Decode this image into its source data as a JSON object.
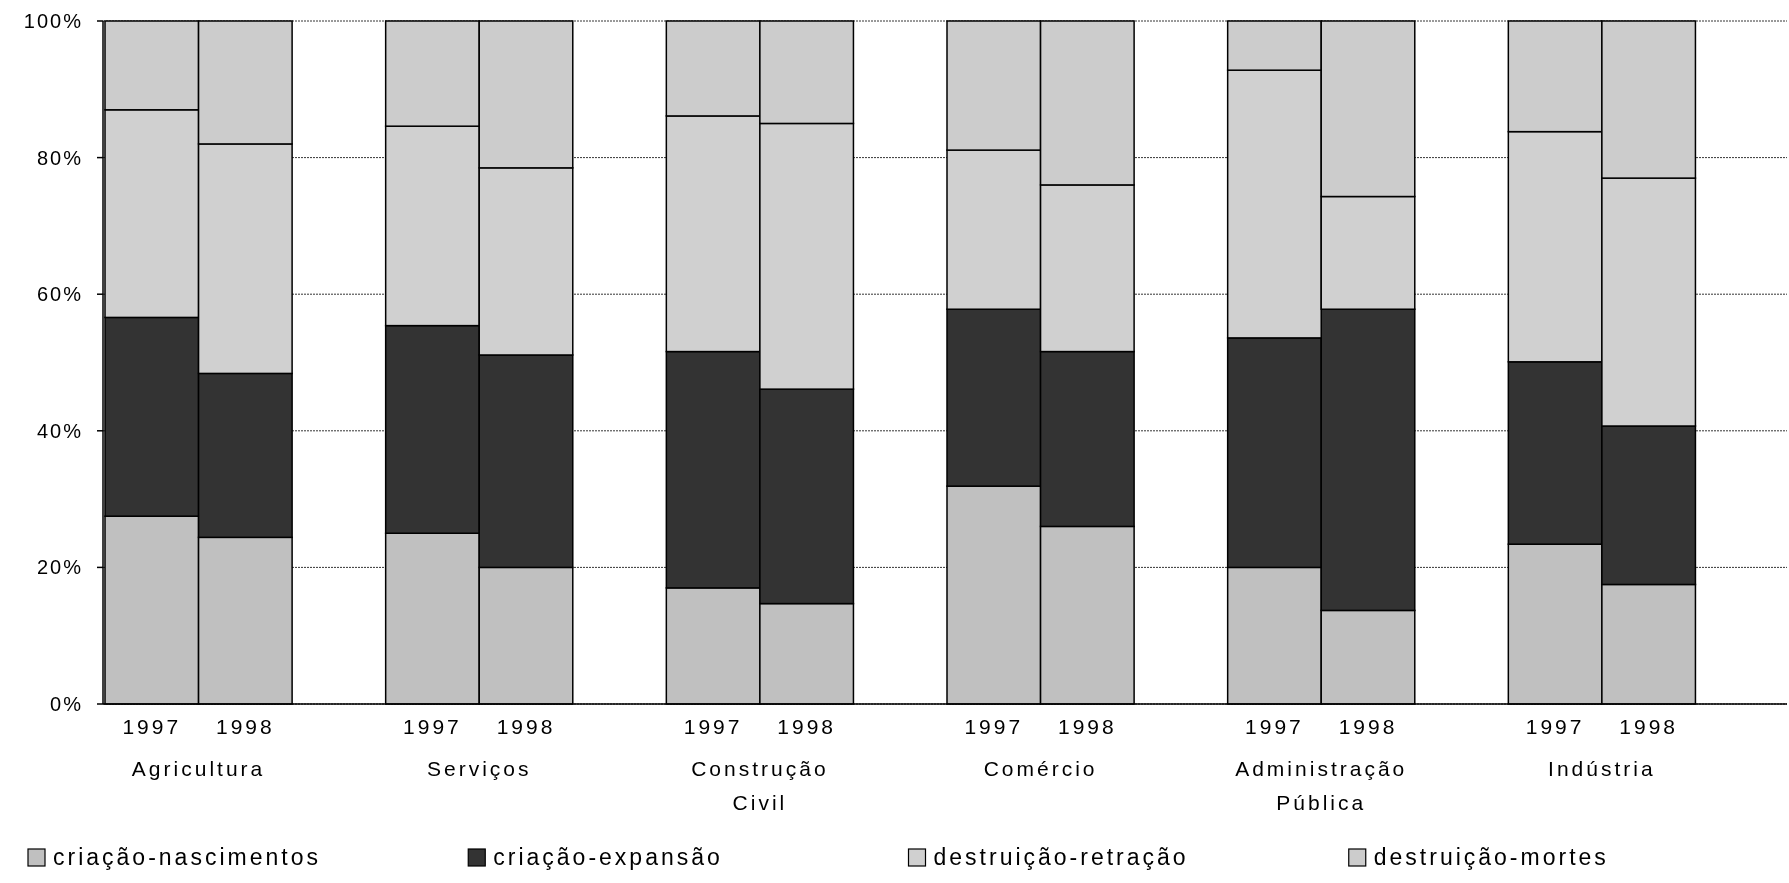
{
  "chart_data": {
    "type": "bar",
    "stacked": true,
    "categories": [
      "1997",
      "1998",
      "1997",
      "1998",
      "1997",
      "1998",
      "1997",
      "1998",
      "1997",
      "1998",
      "1997",
      "1998"
    ],
    "annotations": [
      "Agricultura",
      "Serviços",
      "Construção Civil",
      "Comércio",
      "Administração Pública",
      "Indústria"
    ],
    "series": [
      {
        "name": "criação-nascimentos",
        "color": "#c0c0c0",
        "values": [
          27.5,
          24.4,
          25.0,
          20.0,
          17.0,
          14.7,
          31.9,
          26.0,
          20.0,
          13.7,
          23.4,
          17.5
        ]
      },
      {
        "name": "criação-expansão",
        "color": "#333333",
        "values": [
          29.1,
          24.0,
          30.4,
          31.1,
          34.6,
          31.4,
          25.9,
          25.6,
          33.6,
          44.1,
          26.7,
          23.2
        ]
      },
      {
        "name": "destruição-retração",
        "color": "#d0d0d0",
        "values": [
          30.4,
          33.6,
          29.2,
          27.4,
          34.5,
          38.9,
          23.3,
          24.4,
          39.2,
          16.5,
          33.7,
          36.3
        ]
      },
      {
        "name": "destruição-mortes",
        "color": "#cccccc",
        "values": [
          13.0,
          18.0,
          15.4,
          21.5,
          13.9,
          15.0,
          18.9,
          24.0,
          7.2,
          25.7,
          16.2,
          23.0
        ]
      }
    ],
    "ylim": [
      0,
      100
    ],
    "yticks": [
      {
        "value": 0,
        "label": "0%"
      },
      {
        "value": 20,
        "label": "20%"
      },
      {
        "value": 40,
        "label": "40%"
      },
      {
        "value": 60,
        "label": "60%"
      },
      {
        "value": 80,
        "label": "80%"
      },
      {
        "value": 100,
        "label": "100%"
      }
    ],
    "grid": "y",
    "legend": "bottom"
  }
}
